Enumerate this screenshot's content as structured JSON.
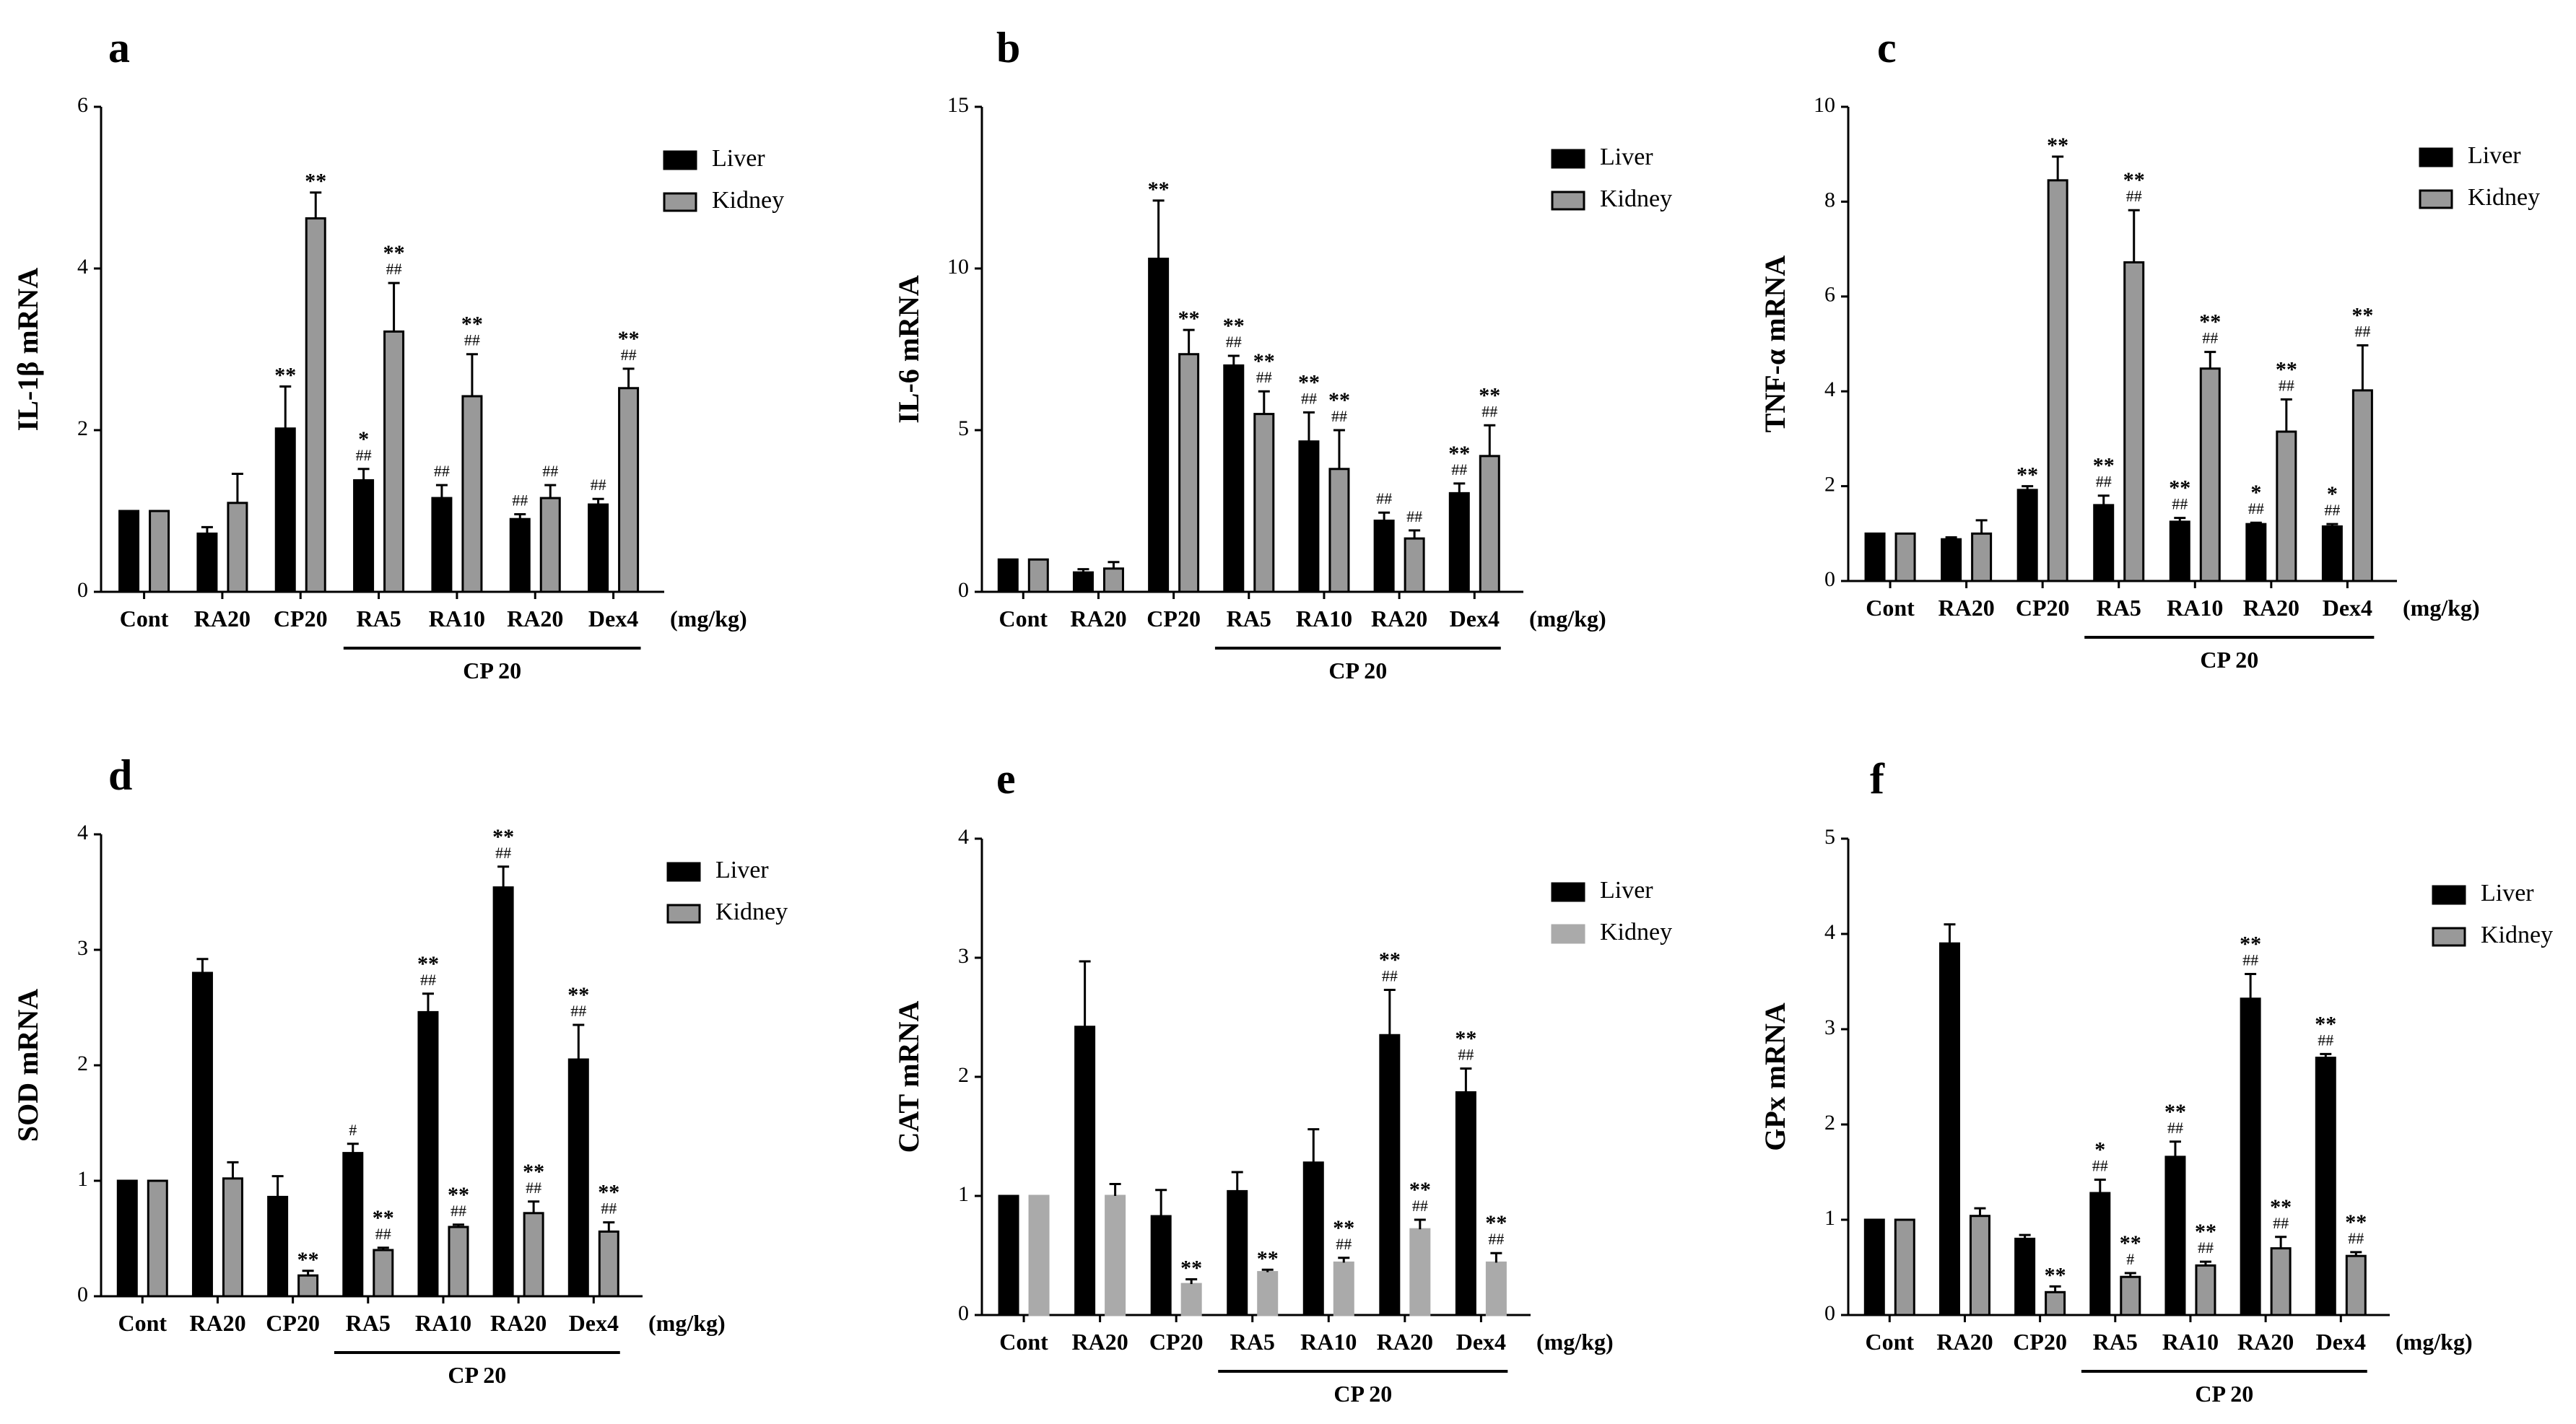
{
  "figure": {
    "colors": {
      "liver": "#000000",
      "kidney": "#999999",
      "kidney_light": "#aaaaaa",
      "axis": "#000000"
    },
    "unit_label": "(mg/kg)",
    "group_label": "CP 20"
  },
  "chart_data": [
    {
      "panel": "a",
      "type": "bar",
      "ylabel": "IL-1β mRNA",
      "ylim": [
        0,
        6
      ],
      "yticks": [
        0,
        2,
        4,
        6
      ],
      "categories": [
        "Cont",
        "RA20",
        "CP20",
        "RA5",
        "RA10",
        "RA20",
        "Dex4"
      ],
      "series": [
        {
          "name": "Liver",
          "values": [
            1.0,
            0.72,
            2.02,
            1.38,
            1.16,
            0.9,
            1.08
          ],
          "errors": [
            0,
            0.08,
            0.52,
            0.14,
            0.16,
            0.06,
            0.07
          ],
          "sig": [
            "",
            "",
            "**",
            "*",
            "",
            "",
            ""
          ],
          "hash": [
            "",
            "",
            "",
            "##",
            "##",
            "##",
            "##"
          ]
        },
        {
          "name": "Kidney",
          "values": [
            1.0,
            1.1,
            4.62,
            3.22,
            2.42,
            1.16,
            2.52
          ],
          "errors": [
            0,
            0.36,
            0.32,
            0.6,
            0.52,
            0.16,
            0.24
          ],
          "sig": [
            "",
            "",
            "**",
            "**",
            "**",
            "",
            "**"
          ],
          "hash": [
            "",
            "",
            "",
            "##",
            "##",
            "##",
            "##"
          ]
        }
      ]
    },
    {
      "panel": "b",
      "type": "bar",
      "ylabel": "IL-6 mRNA",
      "ylim": [
        0,
        15
      ],
      "yticks": [
        0,
        5,
        10,
        15
      ],
      "categories": [
        "Cont",
        "RA20",
        "CP20",
        "RA5",
        "RA10",
        "RA20",
        "Dex4"
      ],
      "series": [
        {
          "name": "Liver",
          "values": [
            1.0,
            0.6,
            10.3,
            7.0,
            4.65,
            2.2,
            3.05
          ],
          "errors": [
            0,
            0.1,
            1.8,
            0.3,
            0.9,
            0.25,
            0.3
          ],
          "sig": [
            "",
            "",
            "**",
            "**",
            "**",
            "",
            "**"
          ],
          "hash": [
            "",
            "",
            "",
            "##",
            "##",
            "##",
            "##"
          ]
        },
        {
          "name": "Kidney",
          "values": [
            1.0,
            0.72,
            7.35,
            5.5,
            3.8,
            1.65,
            4.2
          ],
          "errors": [
            0,
            0.2,
            0.75,
            0.7,
            1.2,
            0.25,
            0.95
          ],
          "sig": [
            "",
            "",
            "**",
            "**",
            "**",
            "",
            "**"
          ],
          "hash": [
            "",
            "",
            "",
            "##",
            "##",
            "##",
            "##"
          ]
        }
      ]
    },
    {
      "panel": "c",
      "type": "bar",
      "ylabel": "TNF-α mRNA",
      "ylim": [
        0,
        10
      ],
      "yticks": [
        0,
        2,
        4,
        6,
        8,
        10
      ],
      "categories": [
        "Cont",
        "RA20",
        "CP20",
        "RA5",
        "RA10",
        "RA20",
        "Dex4"
      ],
      "series": [
        {
          "name": "Liver",
          "values": [
            1.0,
            0.88,
            1.92,
            1.6,
            1.25,
            1.2,
            1.15
          ],
          "errors": [
            0,
            0.04,
            0.08,
            0.2,
            0.08,
            0.03,
            0.05
          ],
          "sig": [
            "",
            "",
            "**",
            "**",
            "**",
            "*",
            "*"
          ],
          "hash": [
            "",
            "",
            "",
            "##",
            "##",
            "##",
            "##"
          ]
        },
        {
          "name": "Kidney",
          "values": [
            1.0,
            1.0,
            8.45,
            6.72,
            4.48,
            3.15,
            4.02
          ],
          "errors": [
            0,
            0.28,
            0.5,
            1.1,
            0.35,
            0.68,
            0.95
          ],
          "sig": [
            "",
            "",
            "**",
            "**",
            "**",
            "**",
            "**"
          ],
          "hash": [
            "",
            "",
            "",
            "##",
            "##",
            "##",
            "##"
          ]
        }
      ]
    },
    {
      "panel": "d",
      "type": "bar",
      "ylabel": "SOD mRNA",
      "ylim": [
        0,
        4
      ],
      "yticks": [
        0,
        1,
        2,
        3,
        4
      ],
      "categories": [
        "Cont",
        "RA20",
        "CP20",
        "RA5",
        "RA10",
        "RA20",
        "Dex4"
      ],
      "series": [
        {
          "name": "Liver",
          "values": [
            1.0,
            2.8,
            0.86,
            1.24,
            2.46,
            3.54,
            2.05
          ],
          "errors": [
            0,
            0.12,
            0.18,
            0.08,
            0.16,
            0.18,
            0.3
          ],
          "sig": [
            "",
            "",
            "",
            "",
            "**",
            "**",
            "**"
          ],
          "hash": [
            "",
            "",
            "",
            "#",
            "##",
            "##",
            "##"
          ]
        },
        {
          "name": "Kidney",
          "values": [
            1.0,
            1.02,
            0.18,
            0.4,
            0.6,
            0.72,
            0.56
          ],
          "errors": [
            0,
            0.14,
            0.04,
            0.02,
            0.02,
            0.1,
            0.08
          ],
          "sig": [
            "",
            "",
            "**",
            "**",
            "**",
            "**",
            "**"
          ],
          "hash": [
            "",
            "",
            "",
            "##",
            "##",
            "##",
            "##"
          ]
        }
      ]
    },
    {
      "panel": "e",
      "type": "bar",
      "ylabel": "CAT mRNA",
      "ylim": [
        0,
        4
      ],
      "yticks": [
        0,
        1,
        2,
        3,
        4
      ],
      "categories": [
        "Cont",
        "RA20",
        "CP20",
        "RA5",
        "RA10",
        "RA20",
        "Dex4"
      ],
      "series": [
        {
          "name": "Liver",
          "values": [
            1.0,
            2.42,
            0.83,
            1.04,
            1.28,
            2.35,
            1.87
          ],
          "errors": [
            0,
            0.55,
            0.22,
            0.16,
            0.28,
            0.38,
            0.2
          ],
          "sig": [
            "",
            "",
            "",
            "",
            "",
            "**",
            "**"
          ],
          "hash": [
            "",
            "",
            "",
            "",
            "",
            "##",
            "##"
          ]
        },
        {
          "name": "Kidney",
          "values": [
            1.0,
            1.0,
            0.26,
            0.36,
            0.44,
            0.72,
            0.44
          ],
          "errors": [
            0,
            0.1,
            0.04,
            0.02,
            0.04,
            0.08,
            0.08
          ],
          "sig": [
            "",
            "",
            "**",
            "**",
            "**",
            "**",
            "**"
          ],
          "hash": [
            "",
            "",
            "",
            "",
            "##",
            "##",
            "##"
          ]
        }
      ]
    },
    {
      "panel": "f",
      "type": "bar",
      "ylabel": "GPx mRNA",
      "ylim": [
        0,
        5
      ],
      "yticks": [
        0,
        1,
        2,
        3,
        4,
        5
      ],
      "categories": [
        "Cont",
        "RA20",
        "CP20",
        "RA5",
        "RA10",
        "RA20",
        "Dex4"
      ],
      "series": [
        {
          "name": "Liver",
          "values": [
            1.0,
            3.9,
            0.8,
            1.28,
            1.66,
            3.32,
            2.7
          ],
          "errors": [
            0,
            0.2,
            0.04,
            0.14,
            0.16,
            0.26,
            0.04
          ],
          "sig": [
            "",
            "",
            "",
            "*",
            "**",
            "**",
            "**"
          ],
          "hash": [
            "",
            "",
            "",
            "##",
            "##",
            "##",
            "##"
          ]
        },
        {
          "name": "Kidney",
          "values": [
            1.0,
            1.04,
            0.24,
            0.4,
            0.52,
            0.7,
            0.62
          ],
          "errors": [
            0,
            0.08,
            0.06,
            0.04,
            0.04,
            0.12,
            0.04
          ],
          "sig": [
            "",
            "",
            "**",
            "**",
            "**",
            "**",
            "**"
          ],
          "hash": [
            "",
            "",
            "",
            "#",
            "##",
            "##",
            "##"
          ]
        }
      ]
    }
  ]
}
